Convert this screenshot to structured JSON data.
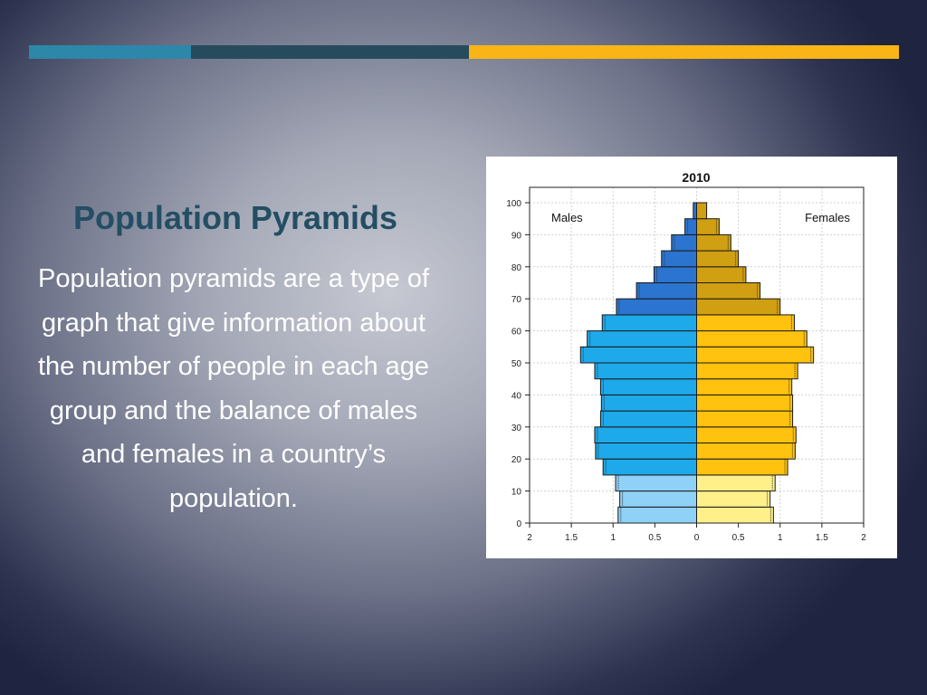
{
  "top_bar": [
    {
      "name": "left",
      "color": "#2d87a9"
    },
    {
      "name": "middle",
      "color": "#264b5d"
    },
    {
      "name": "right",
      "color": "#f9b516"
    }
  ],
  "slide": {
    "title": "Population Pyramids",
    "body": "Population pyramids are a type of graph that give information about the number of people in each age group and the balance of males and females in a country’s population."
  },
  "chart_data": {
    "type": "bar",
    "orientation": "horizontal",
    "title": "2010",
    "xlabel": "",
    "ylabel": "",
    "xlim": [
      -2,
      2
    ],
    "ylim": [
      0,
      100
    ],
    "x_ticks": [
      "2",
      "1.5",
      "1",
      "0.5",
      "0",
      "0.5",
      "1",
      "1.5",
      "2"
    ],
    "y_ticks": [
      "0",
      "10",
      "20",
      "30",
      "40",
      "50",
      "60",
      "70",
      "80",
      "90",
      "100"
    ],
    "grid": true,
    "annotations": [
      {
        "text": "Males",
        "side": "left"
      },
      {
        "text": "Females",
        "side": "right"
      }
    ],
    "age_groups": [
      "0-5",
      "5-10",
      "10-15",
      "15-20",
      "20-25",
      "25-30",
      "30-35",
      "35-40",
      "40-45",
      "45-50",
      "50-55",
      "55-60",
      "60-65",
      "65-70",
      "70-75",
      "75-80",
      "80-85",
      "85-90",
      "90-95",
      "95-100"
    ],
    "series": [
      {
        "name": "Males",
        "colors": {
          "young": "#8fd1f7",
          "working": "#1ea9ea",
          "old": "#2b74cf"
        },
        "values": [
          0.94,
          0.92,
          0.97,
          1.12,
          1.21,
          1.22,
          1.15,
          1.14,
          1.15,
          1.22,
          1.39,
          1.31,
          1.13,
          0.96,
          0.72,
          0.51,
          0.42,
          0.3,
          0.14,
          0.04
        ]
      },
      {
        "name": "Females",
        "colors": {
          "young": "#fff08a",
          "working": "#ffc20e",
          "old": "#d09f12"
        },
        "values": [
          0.92,
          0.88,
          0.94,
          1.09,
          1.18,
          1.19,
          1.15,
          1.15,
          1.14,
          1.21,
          1.4,
          1.32,
          1.17,
          1.0,
          0.76,
          0.59,
          0.5,
          0.41,
          0.27,
          0.12
        ]
      }
    ]
  }
}
